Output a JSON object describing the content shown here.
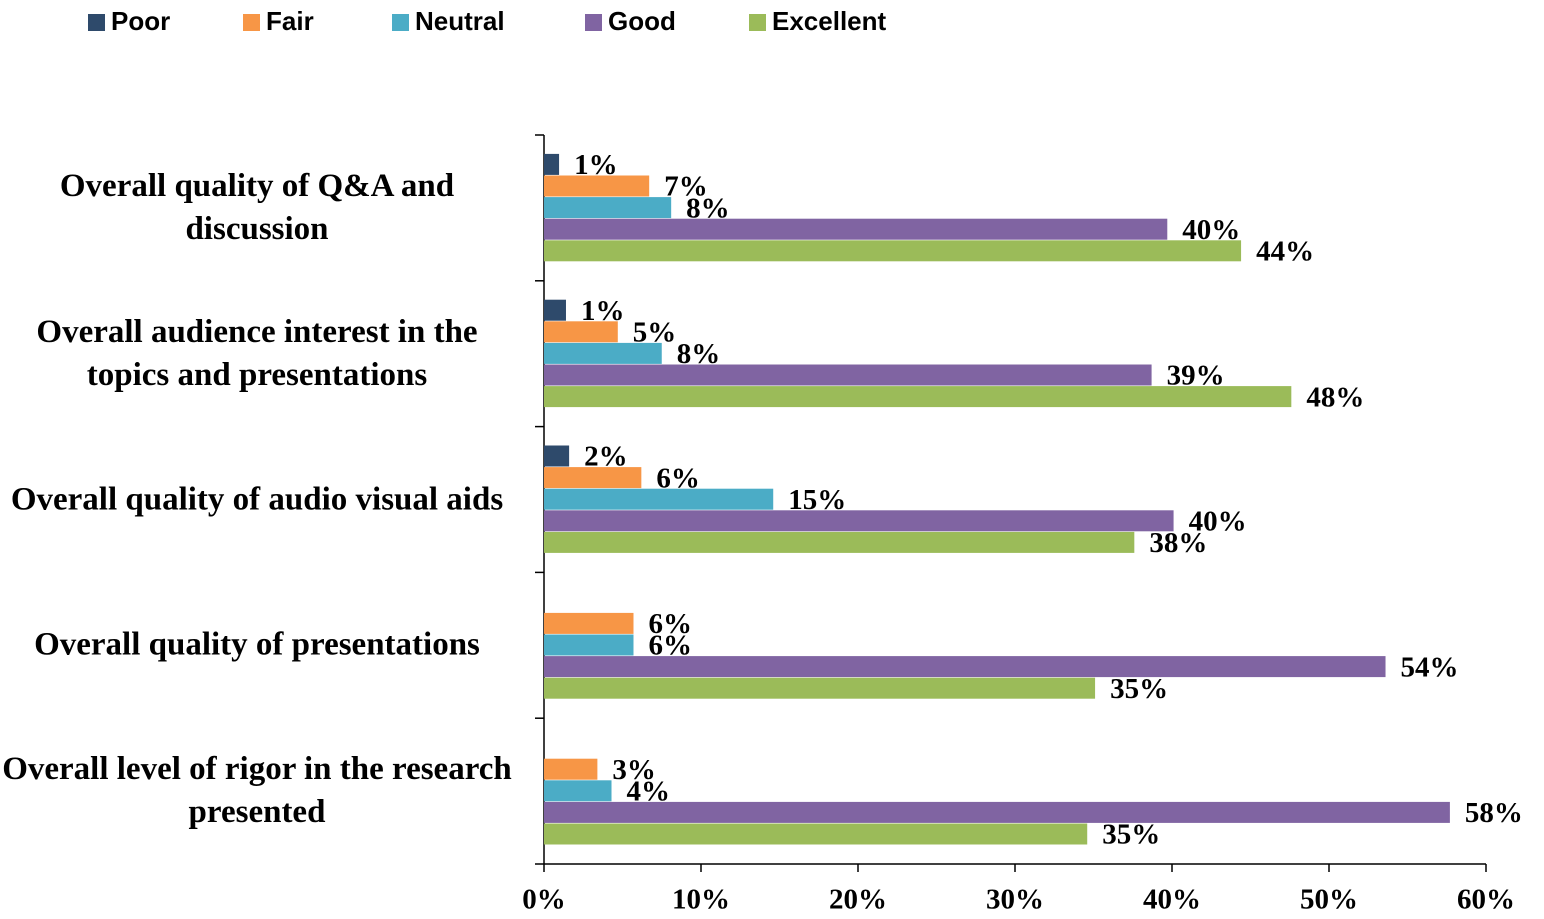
{
  "chart_data": {
    "type": "hbar",
    "categories": [
      "Overall quality of Q&A and discussion",
      "Overall audience interest in the topics and presentations",
      "Overall quality of audio visual aids",
      "Overall quality of presentations",
      "Overall level of rigor in the research presented"
    ],
    "series": [
      {
        "name": "Poor",
        "color": "#2e4a6b",
        "values": [
          0.96,
          1.4,
          1.6,
          null,
          null
        ],
        "value_labels": [
          "1%",
          "1%",
          "2%",
          null,
          null
        ]
      },
      {
        "name": "Fair",
        "color": "#f79646",
        "values": [
          6.7,
          4.7,
          6.2,
          5.7,
          3.4
        ],
        "value_labels": [
          "7%",
          "5%",
          "6%",
          "6%",
          "3%"
        ]
      },
      {
        "name": "Neutral",
        "color": "#4bacc6",
        "values": [
          8.1,
          7.5,
          14.6,
          5.7,
          4.3
        ],
        "value_labels": [
          "8%",
          "8%",
          "15%",
          "6%",
          "4%"
        ]
      },
      {
        "name": "Good",
        "color": "#8064a2",
        "values": [
          39.7,
          38.7,
          40.1,
          53.6,
          57.7
        ],
        "value_labels": [
          "40%",
          "39%",
          "40%",
          "54%",
          "58%"
        ]
      },
      {
        "name": "Excellent",
        "color": "#9bbb59",
        "values": [
          44.4,
          47.6,
          37.6,
          35.1,
          34.6
        ],
        "value_labels": [
          "44%",
          "48%",
          "38%",
          "35%",
          "35%"
        ]
      }
    ],
    "xlim": [
      0,
      60
    ],
    "xticks": [
      {
        "value": 0,
        "label": "0%"
      },
      {
        "value": 10,
        "label": "10%"
      },
      {
        "value": 20,
        "label": "20%"
      },
      {
        "value": 30,
        "label": "30%"
      },
      {
        "value": 40,
        "label": "40%"
      },
      {
        "value": 50,
        "label": "50%"
      },
      {
        "value": 60,
        "label": "60%"
      }
    ],
    "legend": "top"
  }
}
